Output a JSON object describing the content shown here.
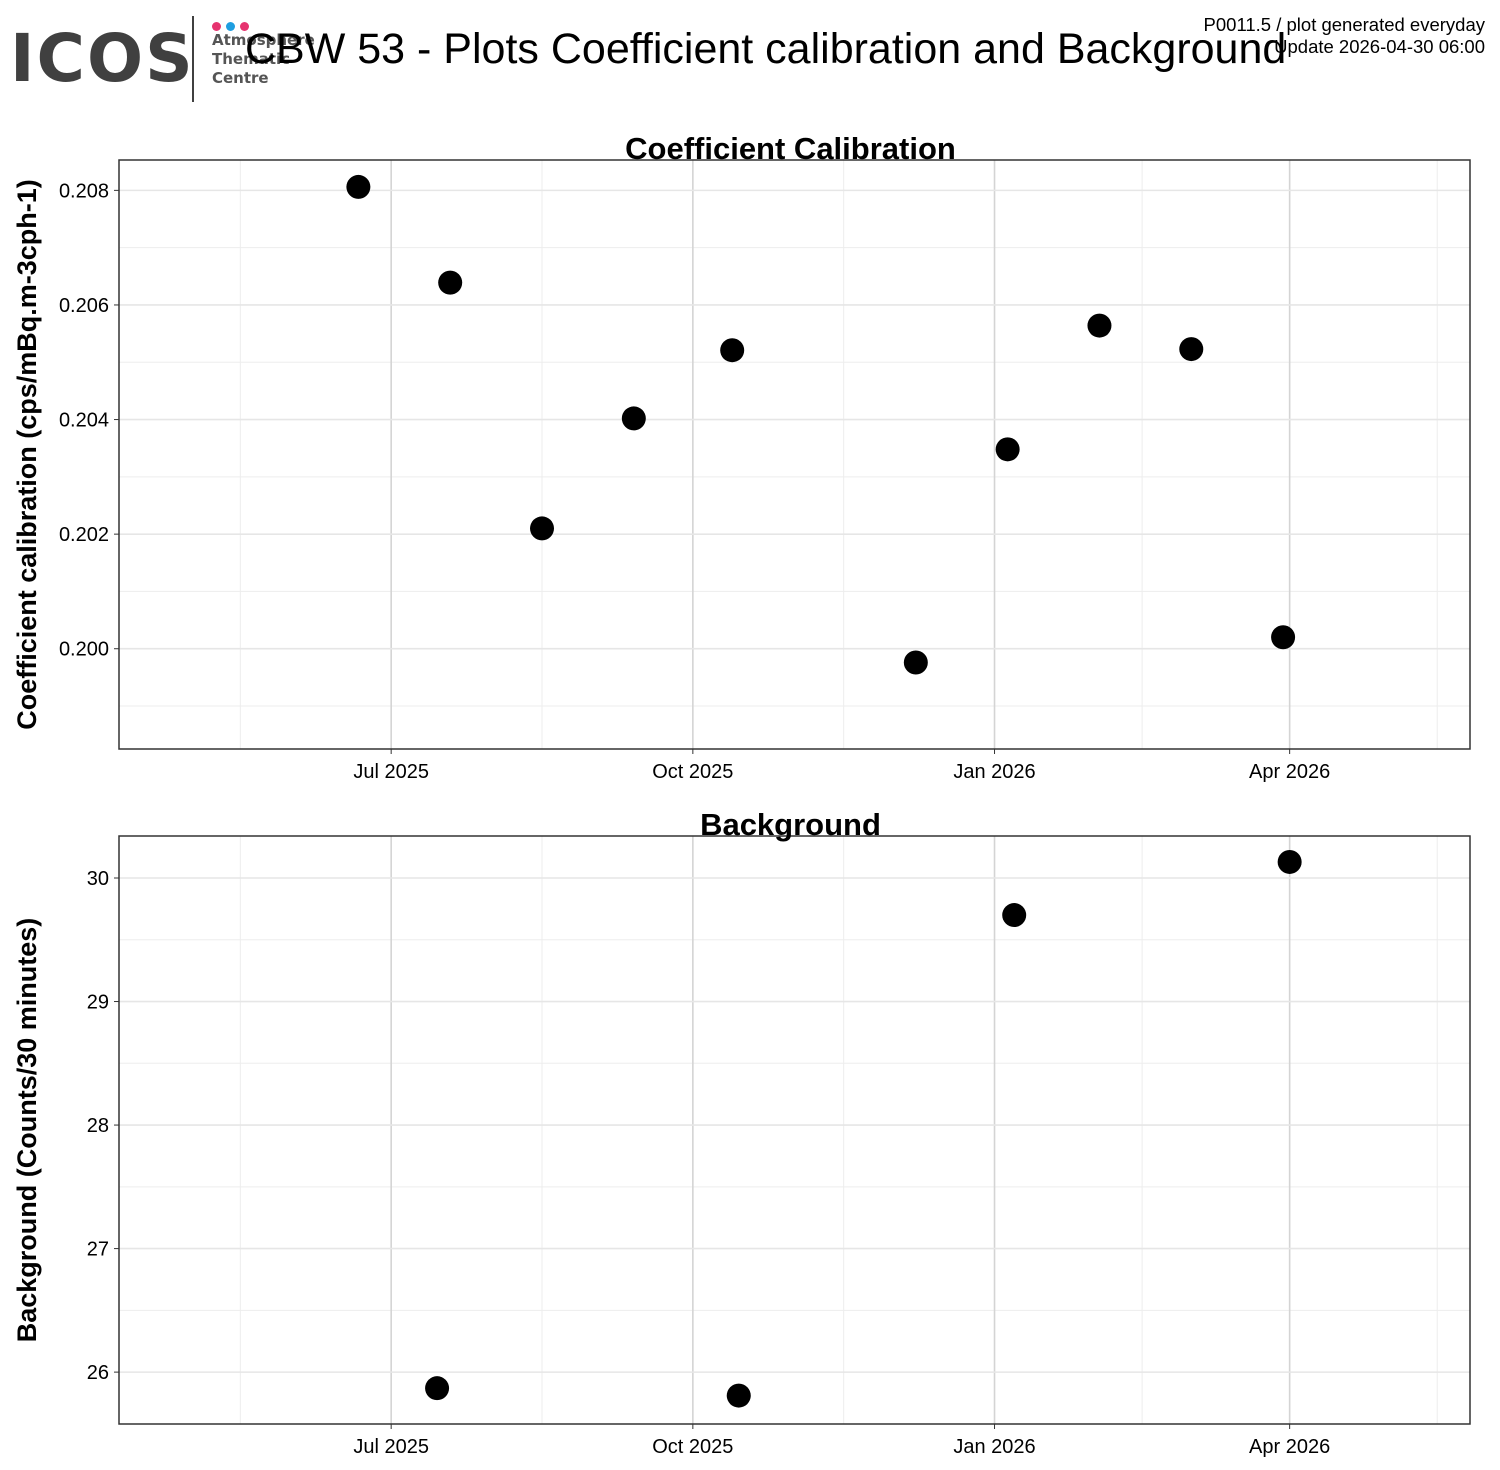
{
  "header": {
    "logo": {
      "name": "ICOS",
      "lines": [
        "Atmosphere",
        "Thematic",
        "Centre"
      ],
      "dot_colors": [
        "#e6336f",
        "#1e9ee0",
        "#e6336f"
      ],
      "text_color": "#404040"
    },
    "title": "CBW 53 - Plots Coefficient calibration and Background",
    "meta_line1": "P0011.5 / plot generated everyday",
    "meta_line2": "Update  2026-04-30 06:00"
  },
  "chart_data": [
    {
      "type": "scatter",
      "title": "Coefficient Calibration",
      "xlabel": "",
      "ylabel": "Coefficient calibration (cps/mBq.m-3cph-1)",
      "xlim": [
        "2025-04-09",
        "2026-05-26"
      ],
      "ylim": [
        0.19825,
        0.20853
      ],
      "xticks": [
        {
          "date": "2025-07-01",
          "label": "Jul 2025"
        },
        {
          "date": "2025-10-01",
          "label": "Oct 2025"
        },
        {
          "date": "2026-01-01",
          "label": "Jan 2026"
        },
        {
          "date": "2026-04-01",
          "label": "Apr 2026"
        }
      ],
      "yticks": [
        {
          "value": 0.2,
          "label": "0.200"
        },
        {
          "value": 0.202,
          "label": "0.202"
        },
        {
          "value": 0.204,
          "label": "0.204"
        },
        {
          "value": 0.206,
          "label": "0.206"
        },
        {
          "value": 0.208,
          "label": "0.208"
        }
      ],
      "grid": true,
      "point_color": "#000000",
      "points": [
        {
          "x": "2025-06-21",
          "y": 0.20806
        },
        {
          "x": "2025-07-19",
          "y": 0.20639
        },
        {
          "x": "2025-08-16",
          "y": 0.2021
        },
        {
          "x": "2025-09-13",
          "y": 0.20402
        },
        {
          "x": "2025-10-13",
          "y": 0.20521
        },
        {
          "x": "2025-12-08",
          "y": 0.19976
        },
        {
          "x": "2026-01-05",
          "y": 0.20348
        },
        {
          "x": "2026-02-02",
          "y": 0.20564
        },
        {
          "x": "2026-03-02",
          "y": 0.20523
        },
        {
          "x": "2026-03-30",
          "y": 0.2002
        }
      ]
    },
    {
      "type": "scatter",
      "title": "Background",
      "xlabel": "",
      "ylabel": "Background (Counts/30 minutes)",
      "xlim": [
        "2025-04-09",
        "2026-05-26"
      ],
      "ylim": [
        25.58,
        30.34
      ],
      "xticks": [
        {
          "date": "2025-07-01",
          "label": "Jul 2025"
        },
        {
          "date": "2025-10-01",
          "label": "Oct 2025"
        },
        {
          "date": "2026-01-01",
          "label": "Jan 2026"
        },
        {
          "date": "2026-04-01",
          "label": "Apr 2026"
        }
      ],
      "yticks": [
        {
          "value": 26,
          "label": "26"
        },
        {
          "value": 27,
          "label": "27"
        },
        {
          "value": 28,
          "label": "28"
        },
        {
          "value": 29,
          "label": "29"
        },
        {
          "value": 30,
          "label": "30"
        }
      ],
      "grid": true,
      "point_color": "#000000",
      "points": [
        {
          "x": "2025-07-15",
          "y": 25.87
        },
        {
          "x": "2025-10-15",
          "y": 25.81
        },
        {
          "x": "2026-01-07",
          "y": 29.7
        },
        {
          "x": "2026-04-01",
          "y": 30.13
        }
      ]
    }
  ]
}
